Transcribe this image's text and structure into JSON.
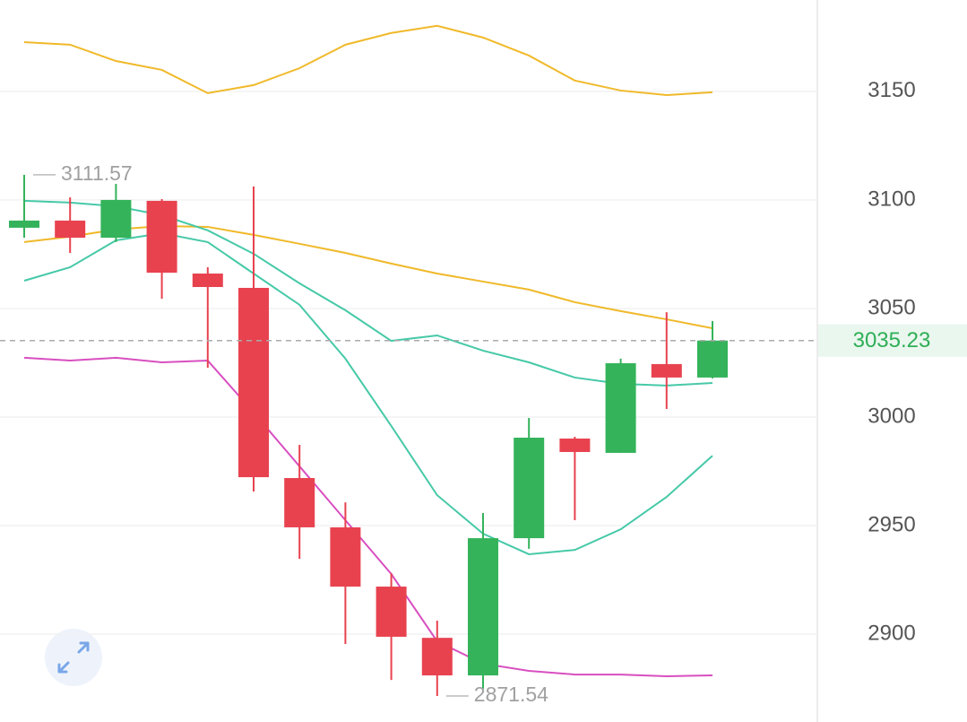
{
  "chart_data": {
    "type": "candlestick",
    "open": [
      3087.2,
      3090.5,
      3082.6,
      3099.6,
      3066.1,
      3059.5,
      2971.9,
      2949.2,
      2921.9,
      2898.3,
      2881.0,
      2944.2,
      2990.1,
      2983.5,
      3024.4,
      3018.2
    ],
    "high": [
      3111.57,
      3101.2,
      3107.4,
      3100.4,
      3069.0,
      3106.2,
      2987.2,
      2960.7,
      2928.1,
      2906.2,
      2955.8,
      2999.6,
      2990.9,
      3026.9,
      3048.3,
      3044.2
    ],
    "low": [
      3082.6,
      3075.6,
      3080.6,
      3054.5,
      3022.7,
      2965.7,
      2934.7,
      2895.5,
      2878.9,
      2871.54,
      2874.8,
      2939.3,
      2952.5,
      2983.5,
      3003.7,
      3017.8
    ],
    "close": [
      3090.5,
      3082.6,
      3100.0,
      3066.5,
      3059.9,
      2972.3,
      2949.2,
      2921.9,
      2898.8,
      2881.0,
      2944.2,
      2990.5,
      2983.9,
      3024.8,
      3018.2,
      3035.23
    ],
    "up_color": "#34b35a",
    "down_color": "#e8424f",
    "lines": [
      {
        "color": "#f0b92a",
        "values": [
          3172.7,
          3171.5,
          3164.0,
          3159.9,
          3149.2,
          3152.9,
          3160.7,
          3171.5,
          3176.9,
          3180.2,
          3174.8,
          3166.5,
          3155.0,
          3150.4,
          3148.3,
          3149.6
        ]
      },
      {
        "color": "#f0b92a",
        "values": [
          3080.6,
          3083.1,
          3086.4,
          3088.0,
          3087.6,
          3083.9,
          3079.8,
          3075.6,
          3070.7,
          3066.1,
          3062.4,
          3058.7,
          3052.9,
          3048.8,
          3045.0,
          3040.9
        ]
      },
      {
        "color": "#46c9a8",
        "values": [
          3099.6,
          3098.8,
          3097.1,
          3093.0,
          3086.0,
          3075.2,
          3061.6,
          3049.2,
          3035.1,
          3037.6,
          3030.6,
          3025.2,
          3018.2,
          3015.3,
          3014.5,
          3015.7
        ]
      },
      {
        "color": "#46c9a8",
        "values": [
          3062.8,
          3069.0,
          3081.4,
          3084.7,
          3080.6,
          3066.1,
          3051.7,
          3026.9,
          2995.9,
          2964.0,
          2946.3,
          2936.8,
          2938.8,
          2948.3,
          2963.2,
          2982.2
        ]
      },
      {
        "color": "#d84fc0",
        "values": [
          3027.3,
          3026.0,
          3027.3,
          3025.2,
          3026.0,
          3002.1,
          2977.3,
          2952.5,
          2927.7,
          2896.7,
          2886.4,
          2883.1,
          2881.4,
          2881.4,
          2880.6,
          2881.0
        ]
      }
    ],
    "ylim": [
      2861.6,
      3192.1
    ],
    "yticks": [
      2900,
      2950,
      3000,
      3050,
      3100,
      3150
    ],
    "grid": true
  }
}
